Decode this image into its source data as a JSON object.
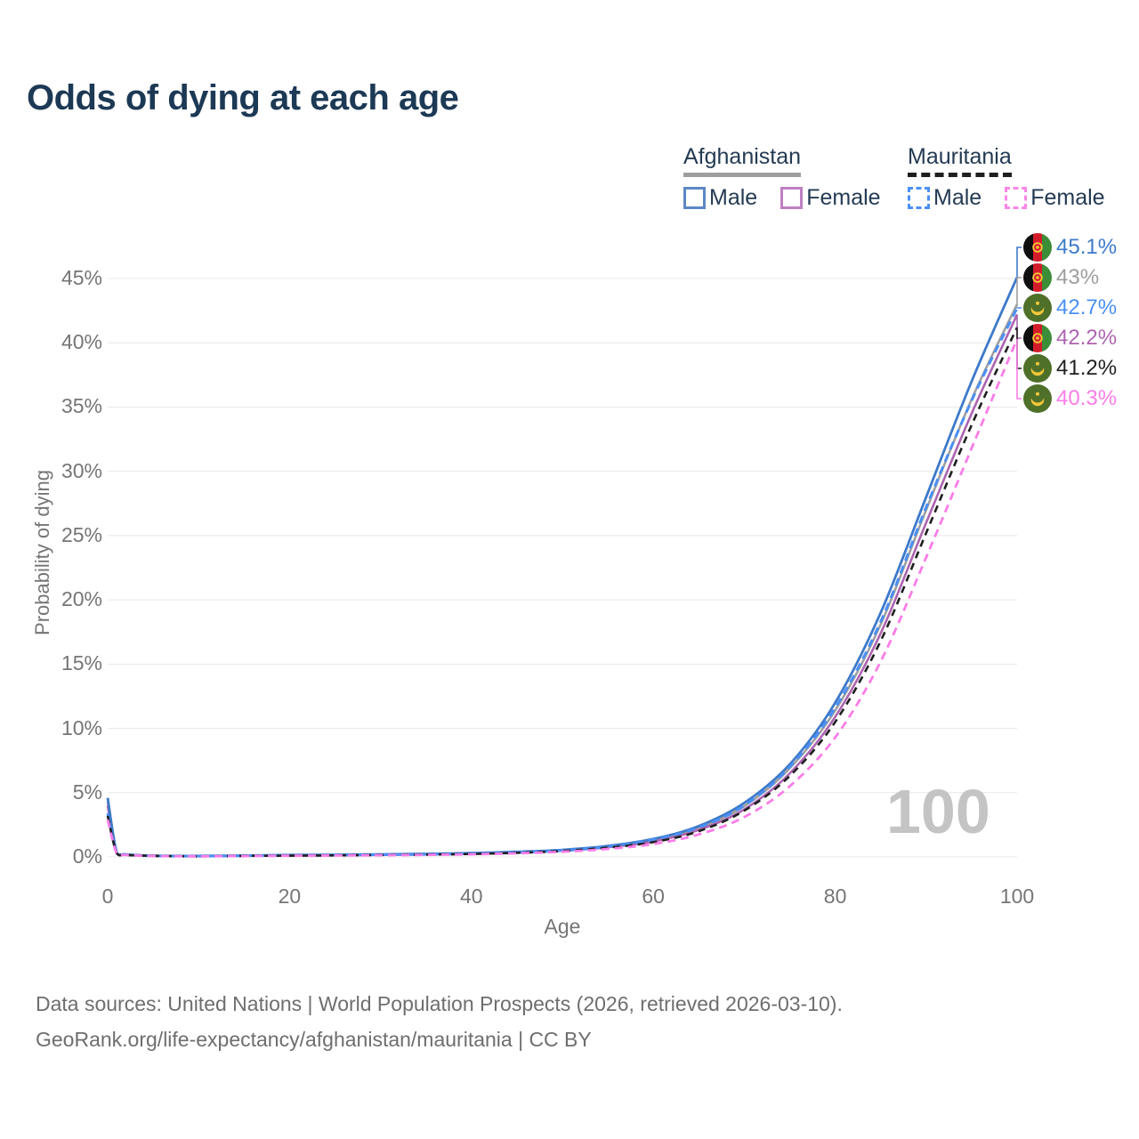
{
  "title": "Odds of dying at each age",
  "legend": {
    "afghanistan": {
      "label": "Afghanistan",
      "male_label": "Male",
      "female_label": "Female",
      "series_color": "#9e9e9e",
      "male_color": "#5b87c5",
      "female_color": "#c07fc2"
    },
    "mauritania": {
      "label": "Mauritania",
      "male_label": "Male",
      "female_label": "Female",
      "series_color": "#1f1f1f",
      "male_color": "#4a8ff5",
      "female_color": "#fb87e8"
    }
  },
  "watermark": "100",
  "colors": {
    "title": "#1c3955",
    "axis_text": "#757575",
    "grid": "#e8e8e8",
    "footer_text": "#6e6e6e",
    "watermark": "#c4c4c4"
  },
  "footer": {
    "line1": "Data sources: United Nations | World Population Prospects (2026, retrieved 2026-03-10).",
    "line2": "GeoRank.org/life-expectancy/afghanistan/mauritania | CC BY"
  },
  "chart_data": {
    "type": "line",
    "title": "Odds of dying at each age",
    "xlabel": "Age",
    "ylabel": "Probability of dying",
    "x_ticks": [
      0,
      20,
      40,
      60,
      80,
      100
    ],
    "y_ticks": [
      "0%",
      "5%",
      "10%",
      "15%",
      "20%",
      "25%",
      "30%",
      "35%",
      "40%",
      "45%"
    ],
    "xlim": [
      0,
      100
    ],
    "ylim_percent": [
      0,
      45
    ],
    "grid": "horizontal",
    "legend_position": "top-right",
    "x": [
      0,
      1,
      2,
      5,
      10,
      15,
      20,
      25,
      30,
      35,
      40,
      45,
      50,
      55,
      60,
      65,
      70,
      75,
      80,
      85,
      90,
      95,
      100
    ],
    "series": [
      {
        "id": "afghanistan-male",
        "country": "Afghanistan",
        "sex": "male",
        "style": "solid",
        "color": "#3d79c9",
        "flag": "af",
        "end_label": "45.1%",
        "values": [
          4.6,
          0.35,
          0.2,
          0.1,
          0.08,
          0.11,
          0.15,
          0.17,
          0.2,
          0.24,
          0.3,
          0.4,
          0.55,
          0.85,
          1.4,
          2.4,
          4.2,
          7.2,
          12.0,
          19.0,
          28.0,
          37.0,
          45.1
        ]
      },
      {
        "id": "afghanistan-both",
        "country": "Afghanistan",
        "sex": "both",
        "style": "solid",
        "color": "#9e9e9e",
        "flag": "af",
        "end_label": "43%",
        "values": [
          4.3,
          0.33,
          0.19,
          0.09,
          0.07,
          0.1,
          0.13,
          0.15,
          0.18,
          0.22,
          0.27,
          0.37,
          0.52,
          0.8,
          1.32,
          2.25,
          3.95,
          6.9,
          11.4,
          18.1,
          27.0,
          35.6,
          43.0
        ]
      },
      {
        "id": "mauritania-male",
        "country": "Mauritania",
        "sex": "male",
        "style": "dashed",
        "color": "#4a8ff5",
        "flag": "mr",
        "end_label": "42.7%",
        "values": [
          3.4,
          0.3,
          0.17,
          0.08,
          0.06,
          0.09,
          0.12,
          0.14,
          0.17,
          0.21,
          0.26,
          0.36,
          0.5,
          0.8,
          1.35,
          2.3,
          4.0,
          7.0,
          11.6,
          18.3,
          27.2,
          35.5,
          42.7
        ]
      },
      {
        "id": "afghanistan-female",
        "country": "Afghanistan",
        "sex": "female",
        "style": "solid",
        "color": "#ad64b0",
        "flag": "af",
        "end_label": "42.2%",
        "values": [
          4.0,
          0.3,
          0.17,
          0.09,
          0.06,
          0.08,
          0.11,
          0.13,
          0.16,
          0.19,
          0.24,
          0.33,
          0.48,
          0.75,
          1.2,
          2.1,
          3.7,
          6.5,
          10.9,
          17.4,
          26.0,
          34.5,
          42.2
        ]
      },
      {
        "id": "mauritania-both",
        "country": "Mauritania",
        "sex": "both",
        "style": "dashed",
        "color": "#1f1f1f",
        "flag": "mr",
        "end_label": "41.2%",
        "values": [
          3.2,
          0.28,
          0.16,
          0.08,
          0.05,
          0.08,
          0.1,
          0.12,
          0.15,
          0.18,
          0.23,
          0.32,
          0.46,
          0.72,
          1.15,
          2.0,
          3.6,
          6.3,
          10.5,
          16.8,
          25.2,
          33.6,
          41.2
        ]
      },
      {
        "id": "mauritania-female",
        "country": "Mauritania",
        "sex": "female",
        "style": "dashed",
        "color": "#fb7ce8",
        "flag": "mr",
        "end_label": "40.3%",
        "values": [
          2.9,
          0.26,
          0.15,
          0.07,
          0.05,
          0.07,
          0.09,
          0.11,
          0.13,
          0.16,
          0.2,
          0.28,
          0.4,
          0.62,
          1.0,
          1.75,
          3.1,
          5.5,
          9.3,
          15.2,
          23.3,
          31.8,
          40.3
        ]
      }
    ]
  }
}
